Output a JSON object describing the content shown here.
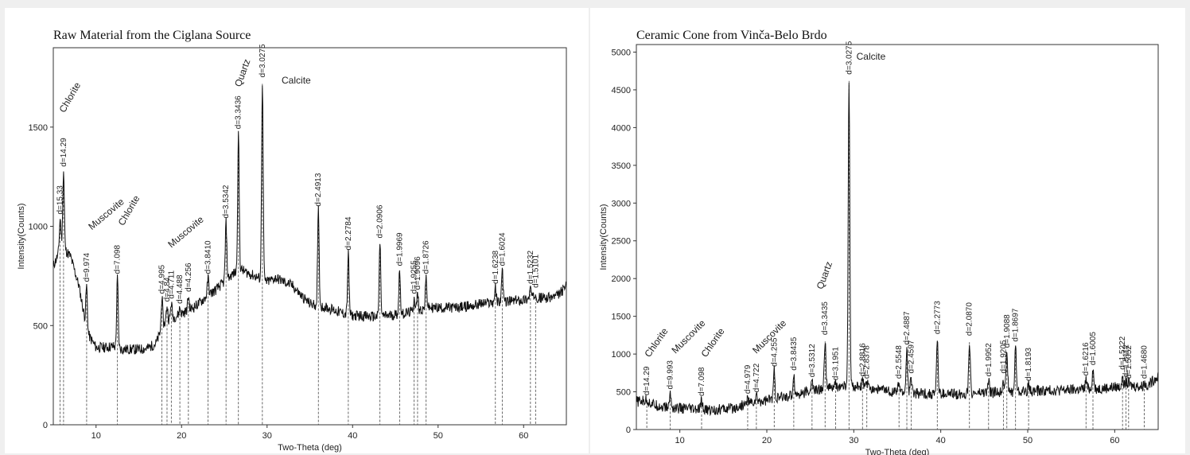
{
  "chart_data": [
    {
      "type": "line",
      "title": "Raw Material from the Ciglana Source",
      "xlabel": "Two-Theta (deg)",
      "ylabel": "Intensity(Counts)",
      "xlim": [
        5,
        65
      ],
      "ylim": [
        0,
        1900
      ],
      "xticks": [
        10,
        20,
        30,
        40,
        50,
        60
      ],
      "yticks": [
        0,
        500,
        1000,
        1500
      ],
      "grid": false,
      "baseline": [
        [
          5,
          800
        ],
        [
          6,
          900
        ],
        [
          7,
          850
        ],
        [
          8,
          700
        ],
        [
          9,
          460
        ],
        [
          10,
          390
        ],
        [
          11,
          390
        ],
        [
          12,
          395
        ],
        [
          13,
          380
        ],
        [
          14,
          380
        ],
        [
          15,
          380
        ],
        [
          16,
          385
        ],
        [
          17,
          410
        ],
        [
          18,
          510
        ],
        [
          19,
          540
        ],
        [
          20,
          560
        ],
        [
          21,
          580
        ],
        [
          22,
          610
        ],
        [
          23,
          650
        ],
        [
          24,
          680
        ],
        [
          25,
          720
        ],
        [
          26,
          760
        ],
        [
          27,
          780
        ],
        [
          28,
          760
        ],
        [
          29,
          740
        ],
        [
          30,
          720
        ],
        [
          31,
          740
        ],
        [
          32,
          720
        ],
        [
          33,
          700
        ],
        [
          34,
          650
        ],
        [
          35,
          610
        ],
        [
          36,
          600
        ],
        [
          37,
          590
        ],
        [
          38,
          575
        ],
        [
          39,
          560
        ],
        [
          40,
          550
        ],
        [
          41,
          550
        ],
        [
          42,
          545
        ],
        [
          43,
          545
        ],
        [
          44,
          550
        ],
        [
          45,
          555
        ],
        [
          46,
          560
        ],
        [
          47,
          570
        ],
        [
          48,
          580
        ],
        [
          49,
          590
        ],
        [
          50,
          590
        ],
        [
          51,
          590
        ],
        [
          52,
          590
        ],
        [
          53,
          595
        ],
        [
          54,
          600
        ],
        [
          55,
          610
        ],
        [
          56,
          615
        ],
        [
          57,
          620
        ],
        [
          58,
          620
        ],
        [
          59,
          625
        ],
        [
          60,
          630
        ],
        [
          61,
          640
        ],
        [
          62,
          640
        ],
        [
          63,
          640
        ],
        [
          64,
          650
        ],
        [
          65,
          700
        ]
      ],
      "peaks": [
        {
          "x": 5.8,
          "y": 1040,
          "label": "d=15.33"
        },
        {
          "x": 6.2,
          "y": 1280,
          "label": "d=14.29"
        },
        {
          "x": 8.9,
          "y": 700,
          "label": "d=9.974"
        },
        {
          "x": 12.5,
          "y": 740,
          "label": "d=7.098"
        },
        {
          "x": 17.7,
          "y": 640,
          "label": "d=4.995"
        },
        {
          "x": 18.3,
          "y": 600,
          "label": "d=4.84"
        },
        {
          "x": 18.8,
          "y": 615,
          "label": "d=4.711"
        },
        {
          "x": 19.8,
          "y": 590,
          "label": "d=4.488"
        },
        {
          "x": 20.8,
          "y": 650,
          "label": "d=4.256"
        },
        {
          "x": 23.1,
          "y": 740,
          "label": "d=3.8410"
        },
        {
          "x": 25.2,
          "y": 1020,
          "label": "d=3.5342"
        },
        {
          "x": 26.65,
          "y": 1470,
          "label": "d=3.3436"
        },
        {
          "x": 29.45,
          "y": 1730,
          "label": "d=3.0275"
        },
        {
          "x": 36.0,
          "y": 1080,
          "label": "d=2.4913"
        },
        {
          "x": 39.5,
          "y": 860,
          "label": "d=2.2784"
        },
        {
          "x": 43.2,
          "y": 920,
          "label": "d=2.0906"
        },
        {
          "x": 45.5,
          "y": 780,
          "label": "d=1.9969"
        },
        {
          "x": 47.2,
          "y": 640,
          "label": "d=1.9255"
        },
        {
          "x": 47.6,
          "y": 660,
          "label": "d=1.9096"
        },
        {
          "x": 48.6,
          "y": 740,
          "label": "d=1.8726"
        },
        {
          "x": 56.7,
          "y": 690,
          "label": "d=1.6238"
        },
        {
          "x": 57.5,
          "y": 780,
          "label": "d=1.6024"
        },
        {
          "x": 60.8,
          "y": 690,
          "label": "d=1.5232"
        },
        {
          "x": 61.4,
          "y": 670,
          "label": "d=1.5101"
        }
      ],
      "phase_labels": [
        {
          "text": "Chlorite",
          "x": 6.3,
          "y": 1570,
          "rotate": -60
        },
        {
          "text": "Muscovite",
          "x": 9.5,
          "y": 980,
          "rotate": -40
        },
        {
          "text": "Chlorite",
          "x": 13.2,
          "y": 1000,
          "rotate": -60
        },
        {
          "text": "Muscovite",
          "x": 18.8,
          "y": 890,
          "rotate": -40
        },
        {
          "text": "Quartz",
          "x": 26.9,
          "y": 1700,
          "rotate": -70
        },
        {
          "text": "Calcite",
          "x": 31.7,
          "y": 1720,
          "rotate": 0
        }
      ]
    },
    {
      "type": "line",
      "title": "Ceramic Cone from Vinča-Belo Brdo",
      "xlabel": "Two-Theta (deg)",
      "ylabel": "Intensity(Counts)",
      "xlim": [
        5,
        65
      ],
      "ylim": [
        0,
        5100
      ],
      "xticks": [
        10,
        20,
        30,
        40,
        50,
        60
      ],
      "yticks": [
        0,
        500,
        1000,
        1500,
        2000,
        2500,
        3000,
        3500,
        4000,
        4500,
        5000
      ],
      "grid": false,
      "baseline": [
        [
          5,
          370
        ],
        [
          6,
          380
        ],
        [
          7,
          330
        ],
        [
          8,
          300
        ],
        [
          9,
          290
        ],
        [
          10,
          280
        ],
        [
          11,
          270
        ],
        [
          12,
          260
        ],
        [
          13,
          260
        ],
        [
          14,
          260
        ],
        [
          15,
          270
        ],
        [
          16,
          280
        ],
        [
          17,
          310
        ],
        [
          18,
          350
        ],
        [
          19,
          370
        ],
        [
          20,
          390
        ],
        [
          21,
          410
        ],
        [
          22,
          430
        ],
        [
          23,
          450
        ],
        [
          24,
          480
        ],
        [
          25,
          510
        ],
        [
          26,
          530
        ],
        [
          27,
          550
        ],
        [
          28,
          560
        ],
        [
          29,
          570
        ],
        [
          30,
          570
        ],
        [
          31,
          560
        ],
        [
          32,
          550
        ],
        [
          33,
          530
        ],
        [
          34,
          510
        ],
        [
          35,
          500
        ],
        [
          36,
          490
        ],
        [
          37,
          480
        ],
        [
          38,
          480
        ],
        [
          39,
          470
        ],
        [
          40,
          470
        ],
        [
          41,
          470
        ],
        [
          42,
          470
        ],
        [
          43,
          475
        ],
        [
          44,
          480
        ],
        [
          45,
          490
        ],
        [
          46,
          490
        ],
        [
          47,
          500
        ],
        [
          48,
          500
        ],
        [
          49,
          505
        ],
        [
          50,
          510
        ],
        [
          51,
          510
        ],
        [
          52,
          515
        ],
        [
          53,
          520
        ],
        [
          54,
          520
        ],
        [
          55,
          525
        ],
        [
          56,
          530
        ],
        [
          57,
          540
        ],
        [
          58,
          545
        ],
        [
          59,
          550
        ],
        [
          60,
          560
        ],
        [
          61,
          570
        ],
        [
          62,
          580
        ],
        [
          63,
          570
        ],
        [
          64,
          600
        ],
        [
          65,
          720
        ]
      ],
      "peaks": [
        {
          "x": 6.2,
          "y": 400,
          "label": "d=14.29"
        },
        {
          "x": 8.9,
          "y": 480,
          "label": "d=9.993"
        },
        {
          "x": 12.5,
          "y": 390,
          "label": "d=7.098"
        },
        {
          "x": 17.8,
          "y": 420,
          "label": "d=4.979"
        },
        {
          "x": 18.8,
          "y": 440,
          "label": "d=4.722"
        },
        {
          "x": 20.85,
          "y": 780,
          "label": "d=4.255"
        },
        {
          "x": 23.1,
          "y": 730,
          "label": "d=3.8435"
        },
        {
          "x": 25.2,
          "y": 640,
          "label": "d=3.5312"
        },
        {
          "x": 26.7,
          "y": 1200,
          "label": "d=3.3435"
        },
        {
          "x": 27.9,
          "y": 600,
          "label": "d=3.1951"
        },
        {
          "x": 29.45,
          "y": 4650,
          "label": "d=3.0275"
        },
        {
          "x": 31.0,
          "y": 650,
          "label": "d=2.8816"
        },
        {
          "x": 31.5,
          "y": 620,
          "label": "d=2.8378"
        },
        {
          "x": 35.2,
          "y": 620,
          "label": "d=2.5548"
        },
        {
          "x": 36.1,
          "y": 1070,
          "label": "d=2.4887"
        },
        {
          "x": 36.6,
          "y": 690,
          "label": "d=2.4597"
        },
        {
          "x": 39.6,
          "y": 1210,
          "label": "d=2.2773"
        },
        {
          "x": 43.3,
          "y": 1190,
          "label": "d=2.0870"
        },
        {
          "x": 45.5,
          "y": 650,
          "label": "d=1.9952"
        },
        {
          "x": 47.2,
          "y": 690,
          "label": "d=1.9205"
        },
        {
          "x": 47.6,
          "y": 1030,
          "label": "d=1.9088"
        },
        {
          "x": 48.6,
          "y": 1110,
          "label": "d=1.8697"
        },
        {
          "x": 50.1,
          "y": 590,
          "label": "d=1.8193"
        },
        {
          "x": 56.7,
          "y": 660,
          "label": "d=1.6216"
        },
        {
          "x": 57.5,
          "y": 800,
          "label": "d=1.6005"
        },
        {
          "x": 60.9,
          "y": 740,
          "label": "d=1.5222"
        },
        {
          "x": 61.3,
          "y": 640,
          "label": "d=1.5112"
        },
        {
          "x": 61.6,
          "y": 620,
          "label": "d=1.5052"
        },
        {
          "x": 63.4,
          "y": 620,
          "label": "d=1.4680"
        }
      ],
      "phase_labels": [
        {
          "text": "Chlorite",
          "x": 6.5,
          "y": 950,
          "rotate": -55
        },
        {
          "text": "Muscovite",
          "x": 9.5,
          "y": 1000,
          "rotate": -45
        },
        {
          "text": "Chlorite",
          "x": 13.0,
          "y": 950,
          "rotate": -55
        },
        {
          "text": "Muscovite",
          "x": 18.8,
          "y": 1000,
          "rotate": -45
        },
        {
          "text": "Quartz",
          "x": 26.4,
          "y": 1850,
          "rotate": -70
        },
        {
          "text": "Calcite",
          "x": 30.3,
          "y": 4900,
          "rotate": 0
        }
      ]
    }
  ]
}
